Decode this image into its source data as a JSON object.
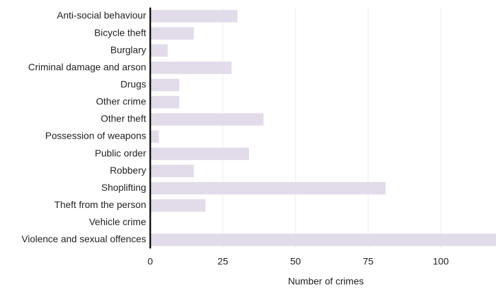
{
  "chart_data": {
    "type": "hbar",
    "categories": [
      "Anti-social behaviour",
      "Bicycle theft",
      "Burglary",
      "Criminal damage and arson",
      "Drugs",
      "Other crime",
      "Other theft",
      "Possession of weapons",
      "Public order",
      "Robbery",
      "Shoplifting",
      "Theft from the person",
      "Vehicle crime",
      "Violence and sexual offences"
    ],
    "values": [
      30,
      15,
      6,
      28,
      10,
      10,
      39,
      3,
      34,
      15,
      81,
      19,
      0,
      119
    ],
    "color": "#e2dcea",
    "xlabel": "Number of crimes",
    "xlim": [
      0,
      119
    ],
    "xticks": [
      0,
      25,
      50,
      75,
      100
    ],
    "grid": true
  }
}
